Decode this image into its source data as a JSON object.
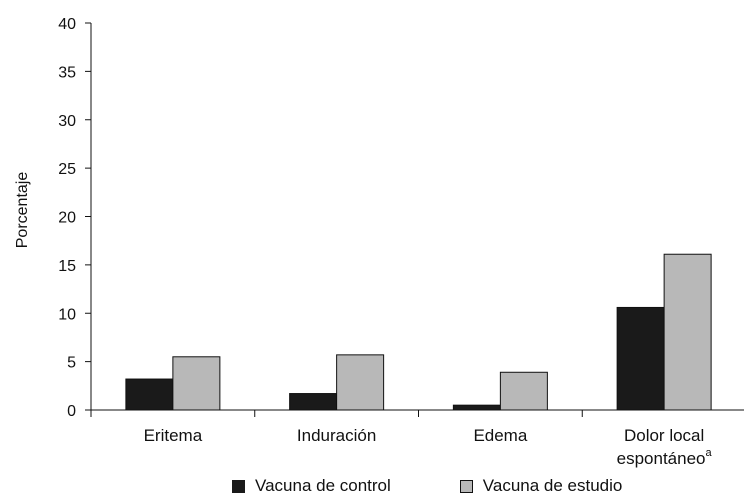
{
  "chart_data": {
    "type": "bar",
    "ylabel": "Porcentaje",
    "ylim": [
      0,
      40
    ],
    "yticks": [
      "0",
      "5",
      "10",
      "15",
      "20",
      "25",
      "30",
      "35",
      "40"
    ],
    "categories": [
      {
        "lines": [
          "Eritema"
        ],
        "sup": ""
      },
      {
        "lines": [
          "Induración"
        ],
        "sup": ""
      },
      {
        "lines": [
          "Edema"
        ],
        "sup": ""
      },
      {
        "lines": [
          "Dolor local",
          "espontáneo"
        ],
        "sup": "a"
      }
    ],
    "series": [
      {
        "name": "Vacuna de control",
        "color": "#1a1a1a",
        "values": [
          3.2,
          1.7,
          0.5,
          10.6
        ]
      },
      {
        "name": "Vacuna de estudio",
        "color": "#b8b8b8",
        "values": [
          5.5,
          5.7,
          3.9,
          16.1
        ]
      }
    ],
    "legend": "bottom",
    "grid": false
  }
}
